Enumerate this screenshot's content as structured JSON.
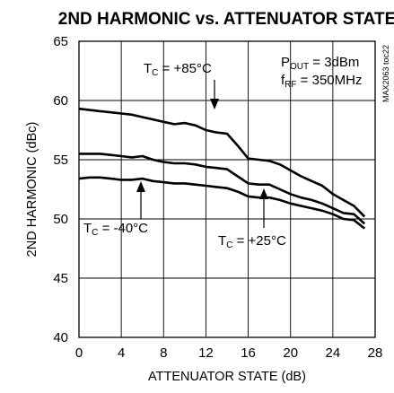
{
  "chart_data": {
    "type": "line",
    "title": "2ND HARMONIC vs. ATTENUATOR STATE",
    "xlabel": "ATTENUATOR STATE (dB)",
    "ylabel": "2ND HARMONIC (dBc)",
    "xlim": [
      0,
      28
    ],
    "ylim": [
      40,
      65
    ],
    "xticks": [
      "0",
      "4",
      "8",
      "12",
      "16",
      "20",
      "24",
      "28"
    ],
    "yticks": [
      "40",
      "45",
      "50",
      "55",
      "60",
      "65"
    ],
    "grid": true,
    "part_number": "MAX2063 toc22",
    "conditions": {
      "pout": {
        "main": "P",
        "sub": "OUT",
        "rest": " = 3dBm"
      },
      "frf": {
        "main": "f",
        "sub": "RF",
        "rest": " = 350MHz"
      }
    },
    "series": [
      {
        "label": {
          "main": "T",
          "sub": "C",
          "rest": " = +85°C"
        },
        "x": [
          0,
          1,
          2,
          3,
          4,
          5,
          6,
          7,
          8,
          9,
          10,
          11,
          12,
          13,
          14,
          15,
          16,
          17,
          18,
          19,
          20,
          21,
          22,
          23,
          24,
          25,
          26,
          27
        ],
        "y": [
          59.3,
          59.2,
          59.1,
          59.0,
          58.9,
          58.8,
          58.6,
          58.4,
          58.2,
          58.0,
          58.1,
          57.9,
          57.5,
          57.3,
          57.2,
          56.2,
          55.1,
          55.0,
          54.9,
          54.6,
          54.1,
          53.6,
          53.2,
          52.8,
          52.1,
          51.6,
          51.1,
          50.2
        ]
      },
      {
        "label": {
          "main": "T",
          "sub": "C",
          "rest": " = +25°C"
        },
        "x": [
          0,
          1,
          2,
          3,
          4,
          5,
          6,
          7,
          8,
          9,
          10,
          11,
          12,
          13,
          14,
          15,
          16,
          17,
          18,
          19,
          20,
          21,
          22,
          23,
          24,
          25,
          26,
          27
        ],
        "y": [
          55.5,
          55.5,
          55.5,
          55.4,
          55.3,
          55.2,
          55.3,
          55.0,
          54.8,
          54.7,
          54.7,
          54.6,
          54.4,
          54.3,
          54.2,
          53.6,
          53.0,
          52.9,
          52.9,
          52.5,
          52.1,
          51.8,
          51.6,
          51.3,
          50.9,
          50.5,
          50.4,
          49.6
        ]
      },
      {
        "label": {
          "main": "T",
          "sub": "C",
          "rest": " = -40°C"
        },
        "x": [
          0,
          1,
          2,
          3,
          4,
          5,
          6,
          7,
          8,
          9,
          10,
          11,
          12,
          13,
          14,
          15,
          16,
          17,
          18,
          19,
          20,
          21,
          22,
          23,
          24,
          25,
          26,
          27
        ],
        "y": [
          53.4,
          53.5,
          53.5,
          53.4,
          53.3,
          53.3,
          53.4,
          53.2,
          53.1,
          53.0,
          53.0,
          52.9,
          52.8,
          52.7,
          52.6,
          52.3,
          51.9,
          51.8,
          51.8,
          51.6,
          51.3,
          51.1,
          50.9,
          50.7,
          50.4,
          50.0,
          49.9,
          49.2
        ]
      }
    ]
  }
}
